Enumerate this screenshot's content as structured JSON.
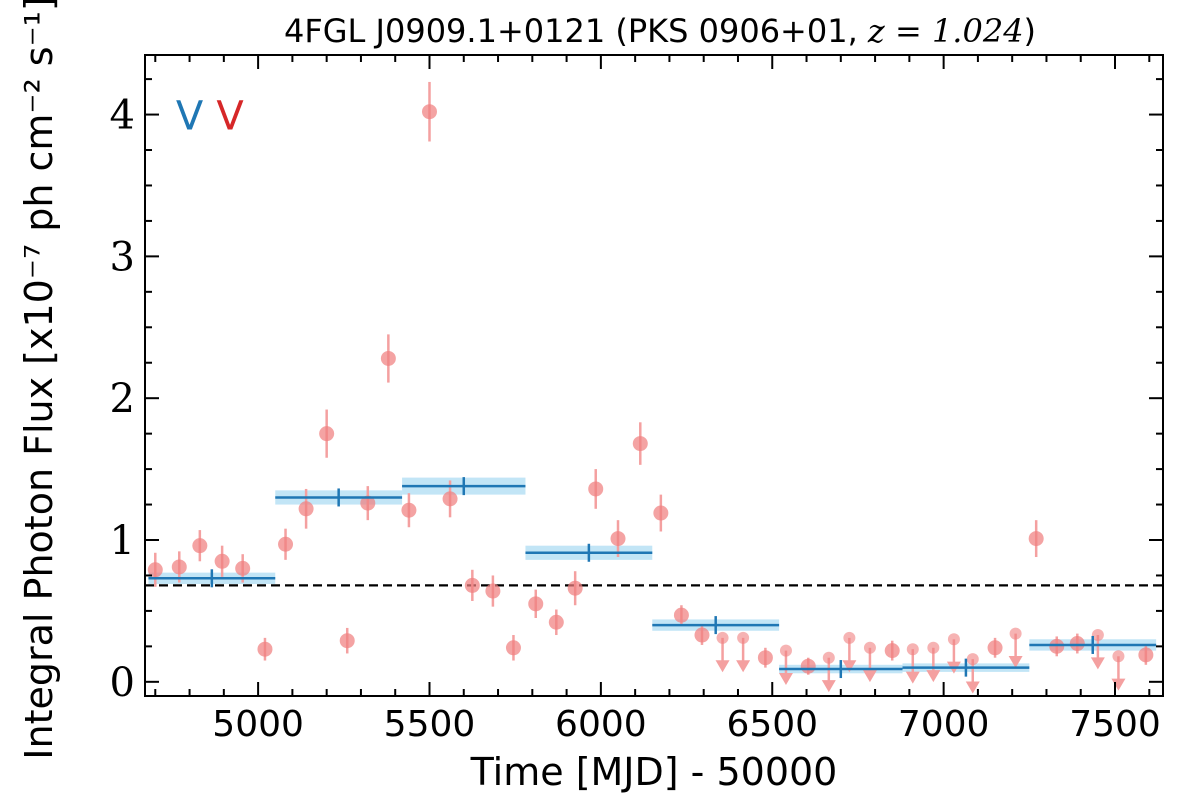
{
  "chart_data": {
    "type": "scatter",
    "title": "4FGL J0909.1+0121 (PKS 0906+01, z = 1.024)",
    "title_parts": {
      "source": "4FGL J0909.1+0121 (PKS 0906+01, ",
      "z": "z = 1.024",
      "close": ")"
    },
    "xlabel": "Time [MJD] - 50000",
    "ylabel": "Integral Photon Flux [x10⁻⁷ ph cm⁻² s⁻¹]",
    "xlim": [
      4670,
      7640
    ],
    "ylim": [
      -0.1,
      4.42
    ],
    "x_ticks": [
      "5000",
      "5500",
      "6000",
      "6500",
      "7000",
      "7500"
    ],
    "y_ticks": [
      "0",
      "1",
      "2",
      "3",
      "4"
    ],
    "grid": false,
    "mean_flux": 0.68,
    "markers": [
      {
        "label": "V",
        "color": "#1f77b4",
        "x": 4800,
        "y": 4.0
      },
      {
        "label": "V",
        "color": "#d62728",
        "x": 4918,
        "y": 4.0
      }
    ],
    "colors": {
      "points": "#f08080",
      "errorbars": "#f4a0a0",
      "bins": "#1f77b4",
      "bin_band": "#aedcf3",
      "mean_line": "#000000"
    },
    "series": [
      {
        "kind": "detections",
        "points": [
          {
            "x": 4700,
            "y": 0.79,
            "err": 0.12
          },
          {
            "x": 4770,
            "y": 0.81,
            "err": 0.11
          },
          {
            "x": 4830,
            "y": 0.96,
            "err": 0.11
          },
          {
            "x": 4895,
            "y": 0.85,
            "err": 0.11
          },
          {
            "x": 4955,
            "y": 0.8,
            "err": 0.1
          },
          {
            "x": 5020,
            "y": 0.23,
            "err": 0.08
          },
          {
            "x": 5080,
            "y": 0.97,
            "err": 0.11
          },
          {
            "x": 5140,
            "y": 1.22,
            "err": 0.14
          },
          {
            "x": 5200,
            "y": 1.75,
            "err": 0.17
          },
          {
            "x": 5260,
            "y": 0.29,
            "err": 0.09
          },
          {
            "x": 5320,
            "y": 1.26,
            "err": 0.12
          },
          {
            "x": 5380,
            "y": 2.28,
            "err": 0.17
          },
          {
            "x": 5440,
            "y": 1.21,
            "err": 0.12
          },
          {
            "x": 5500,
            "y": 4.02,
            "err": 0.21
          },
          {
            "x": 5560,
            "y": 1.29,
            "err": 0.13
          },
          {
            "x": 5625,
            "y": 0.68,
            "err": 0.11
          },
          {
            "x": 5685,
            "y": 0.64,
            "err": 0.11
          },
          {
            "x": 5745,
            "y": 0.24,
            "err": 0.09
          },
          {
            "x": 5810,
            "y": 0.55,
            "err": 0.1
          },
          {
            "x": 5870,
            "y": 0.42,
            "err": 0.09
          },
          {
            "x": 5925,
            "y": 0.66,
            "err": 0.12
          },
          {
            "x": 5985,
            "y": 1.36,
            "err": 0.14
          },
          {
            "x": 6050,
            "y": 1.01,
            "err": 0.13
          },
          {
            "x": 6115,
            "y": 1.68,
            "err": 0.15
          },
          {
            "x": 6175,
            "y": 1.19,
            "err": 0.13
          },
          {
            "x": 6235,
            "y": 0.47,
            "err": 0.07
          },
          {
            "x": 6295,
            "y": 0.33,
            "err": 0.07
          },
          {
            "x": 6480,
            "y": 0.17,
            "err": 0.07
          },
          {
            "x": 6605,
            "y": 0.11,
            "err": 0.06
          },
          {
            "x": 6850,
            "y": 0.22,
            "err": 0.07
          },
          {
            "x": 7150,
            "y": 0.24,
            "err": 0.07
          },
          {
            "x": 7270,
            "y": 1.01,
            "err": 0.13
          },
          {
            "x": 7330,
            "y": 0.25,
            "err": 0.07
          },
          {
            "x": 7390,
            "y": 0.27,
            "err": 0.07
          },
          {
            "x": 7590,
            "y": 0.19,
            "err": 0.07
          }
        ]
      },
      {
        "kind": "upper_limits",
        "points": [
          {
            "x": 6355,
            "y": 0.31
          },
          {
            "x": 6415,
            "y": 0.31
          },
          {
            "x": 6540,
            "y": 0.22
          },
          {
            "x": 6665,
            "y": 0.17
          },
          {
            "x": 6725,
            "y": 0.31
          },
          {
            "x": 6785,
            "y": 0.24
          },
          {
            "x": 6910,
            "y": 0.23
          },
          {
            "x": 6970,
            "y": 0.24
          },
          {
            "x": 7030,
            "y": 0.3
          },
          {
            "x": 7085,
            "y": 0.16
          },
          {
            "x": 7210,
            "y": 0.34
          },
          {
            "x": 7450,
            "y": 0.33
          },
          {
            "x": 7510,
            "y": 0.18
          }
        ]
      },
      {
        "kind": "binned",
        "bins": [
          {
            "x0": 4680,
            "x1": 5050,
            "xc": 4865,
            "y": 0.73,
            "err": 0.04
          },
          {
            "x0": 5050,
            "x1": 5420,
            "xc": 5235,
            "y": 1.3,
            "err": 0.05
          },
          {
            "x0": 5420,
            "x1": 5780,
            "xc": 5600,
            "y": 1.38,
            "err": 0.06
          },
          {
            "x0": 5780,
            "x1": 6150,
            "xc": 5965,
            "y": 0.91,
            "err": 0.05
          },
          {
            "x0": 6150,
            "x1": 6520,
            "xc": 6335,
            "y": 0.4,
            "err": 0.04
          },
          {
            "x0": 6520,
            "x1": 6880,
            "xc": 6700,
            "y": 0.09,
            "err": 0.03
          },
          {
            "x0": 6880,
            "x1": 7250,
            "xc": 7065,
            "y": 0.1,
            "err": 0.03
          },
          {
            "x0": 7250,
            "x1": 7620,
            "xc": 7435,
            "y": 0.26,
            "err": 0.04
          }
        ]
      }
    ]
  }
}
